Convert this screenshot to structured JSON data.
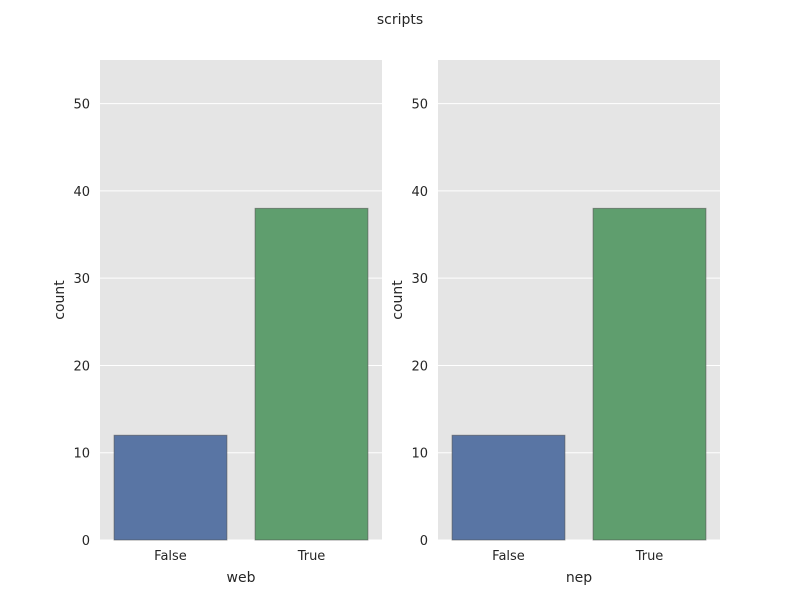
{
  "figure": {
    "title": "scripts"
  },
  "style": {
    "background": "#ffffff",
    "plot_background": "#e5e5e5",
    "grid_color": "#ffffff",
    "text_color": "#262626",
    "bar_colors": [
      "#5975a4",
      "#5f9e6e"
    ]
  },
  "chart_data": [
    {
      "type": "bar",
      "categories": [
        "False",
        "True"
      ],
      "values": [
        12,
        38
      ],
      "xlabel": "web",
      "ylabel": "count",
      "ylim": [
        0,
        55
      ],
      "yticks": [
        0,
        10,
        20,
        30,
        40,
        50
      ],
      "grid": true,
      "legend": "none"
    },
    {
      "type": "bar",
      "categories": [
        "False",
        "True"
      ],
      "values": [
        12,
        38
      ],
      "xlabel": "nep",
      "ylabel": "count",
      "ylim": [
        0,
        55
      ],
      "yticks": [
        0,
        10,
        20,
        30,
        40,
        50
      ],
      "grid": true,
      "legend": "none"
    }
  ]
}
